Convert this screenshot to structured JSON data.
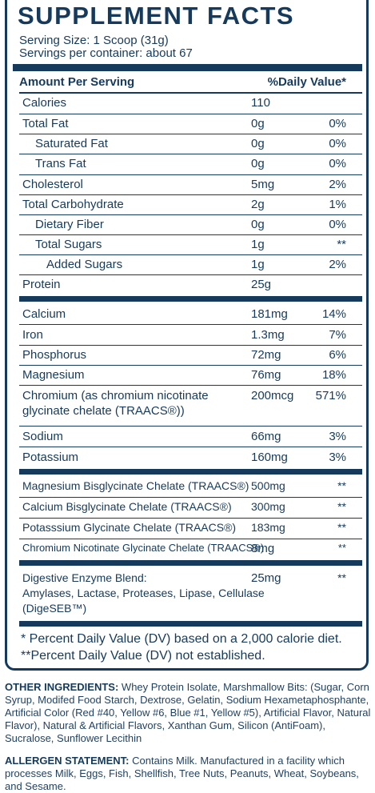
{
  "title": "SUPPLEMENT FACTS",
  "serving_size": "Serving Size: 1 Scoop (31g)",
  "servings_per_container": "Servings per container: about 67",
  "header": {
    "amount": "Amount Per Serving",
    "dv": "%Daily Value*"
  },
  "macros": [
    {
      "name": "Calories",
      "amount": "110",
      "dv": ""
    },
    {
      "name": "Total Fat",
      "amount": "0g",
      "dv": "0%"
    },
    {
      "name": "Saturated Fat",
      "amount": "0g",
      "dv": "0%"
    },
    {
      "name": "Trans Fat",
      "amount": "0g",
      "dv": "0%"
    },
    {
      "name": "Cholesterol",
      "amount": "5mg",
      "dv": "2%"
    },
    {
      "name": "Total Carbohydrate",
      "amount": "2g",
      "dv": "1%"
    },
    {
      "name": "Dietary Fiber",
      "amount": "0g",
      "dv": "0%"
    },
    {
      "name": "Total Sugars",
      "amount": "1g",
      "dv": "**"
    },
    {
      "name": "Added Sugars",
      "amount": "1g",
      "dv": "2%"
    },
    {
      "name": "Protein",
      "amount": "25g",
      "dv": ""
    }
  ],
  "minerals": [
    {
      "name": "Calcium",
      "amount": "181mg",
      "dv": "14%"
    },
    {
      "name": "Iron",
      "amount": "1.3mg",
      "dv": "7%"
    },
    {
      "name": "Phosphorus",
      "amount": "72mg",
      "dv": "6%"
    },
    {
      "name": "Magnesium",
      "amount": "76mg",
      "dv": "18%"
    },
    {
      "name_line1": "Chromium (as chromium nicotinate",
      "name_line2": "glycinate chelate (TRAACS®))",
      "amount": "200mcg",
      "dv": "571%"
    },
    {
      "name": "Sodium",
      "amount": "66mg",
      "dv": "3%"
    },
    {
      "name": "Potassium",
      "amount": "160mg",
      "dv": "3%"
    }
  ],
  "chelates": [
    {
      "name": "Magnesium Bisglycinate Chelate (TRAACS®)",
      "amount": "500mg",
      "dv": "**"
    },
    {
      "name": "Calcium Bisglycinate Chelate (TRAACS®)",
      "amount": "300mg",
      "dv": "**"
    },
    {
      "name": "Potasssium Glycinate Chelate (TRAACS®)",
      "amount": "183mg",
      "dv": "**"
    },
    {
      "name": "Chromium Nicotinate Glycinate Chelate (TRAACS®)",
      "amount": "8mg",
      "dv": "**"
    }
  ],
  "enzyme": {
    "line1": "Digestive Enzyme Blend:",
    "line2": "Amylases, Lactase, Proteases, Lipase, Cellulase",
    "line3": "(DigeSEB™)",
    "amount": "25mg",
    "dv": "**"
  },
  "footnotes": [
    "* Percent Daily Value (DV) based on a 2,000 calorie diet.",
    "**Percent Daily Value (DV) not established."
  ],
  "other_ingredients": {
    "label": "OTHER INGREDIENTS:",
    "text": "Whey Protein Isolate, Marshmallow Bits: (Sugar, Corn Syrup, Modifed Food Starch, Dextrose, Gelatin, Sodium Hexametaphosphante, Artificial Color (Red #40, Yellow #6, Blue #1, Yellow #5), Artificial Flavor, Natural Flavor), Natural & Artificial Flavors, Xanthan Gum, Silicon (AntiFoam), Sucralose, Sunflower Lecithin"
  },
  "allergen": {
    "label": "ALLERGEN STATEMENT:",
    "text": "Contains Milk. Manufactured in a facility which processes Milk, Eggs, Fish, Shellfish, Tree Nuts, Peanuts, Wheat, Soybeans, and Sesame."
  },
  "colors": {
    "navy": "#163a5c",
    "background": "#ffffff"
  }
}
